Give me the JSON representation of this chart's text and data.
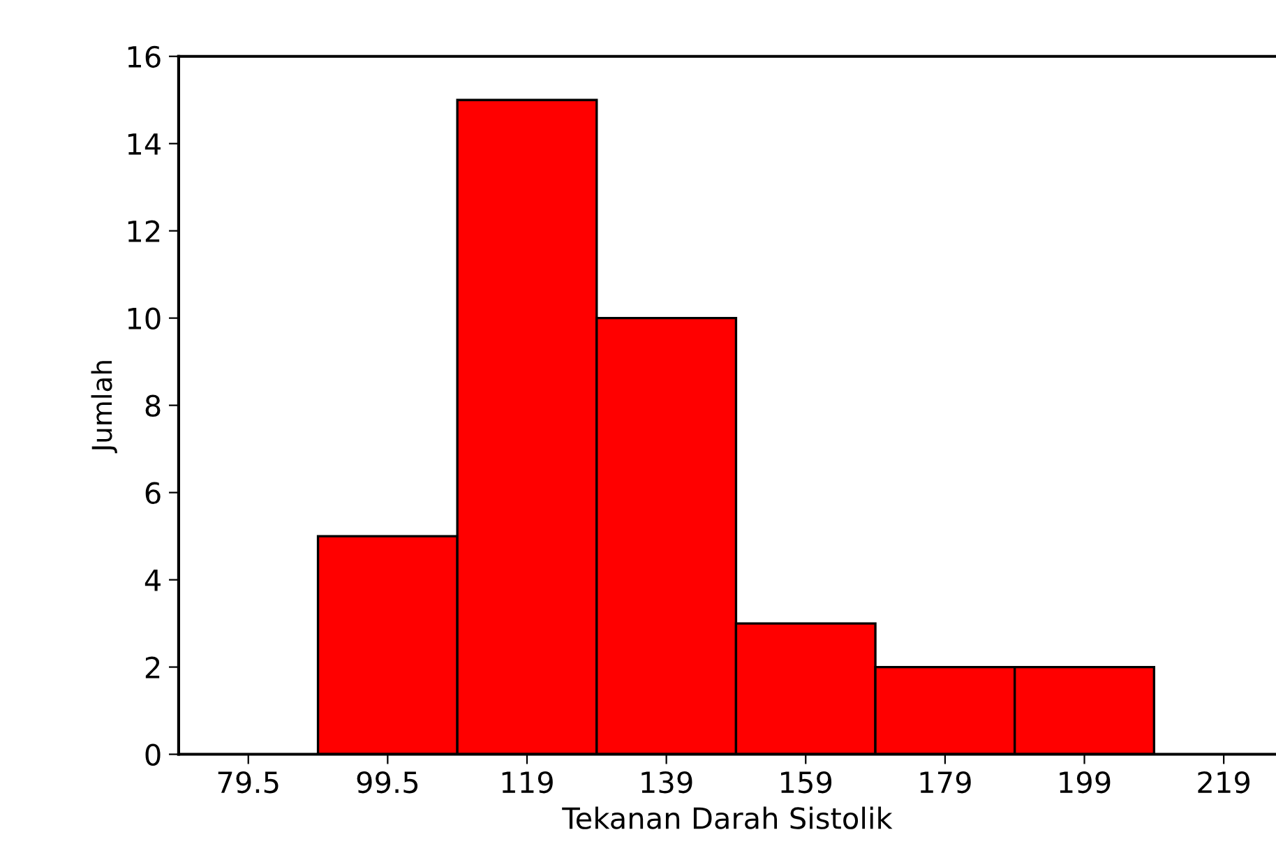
{
  "chart_data": {
    "type": "histogram",
    "xlabel": "Tekanan Darah Sistolik",
    "ylabel": "Jumlah",
    "bins": [
      89.5,
      109.5,
      129.5,
      149.5,
      169.5,
      189.5,
      209.5
    ],
    "values": [
      5,
      15,
      10,
      3,
      2,
      2
    ],
    "color": "#ff0000",
    "xlim": [
      69.5,
      227
    ],
    "xticks": [
      79.5,
      99.5,
      {
        "value": 119.5,
        "label": "119"
      },
      {
        "value": 139.5,
        "label": "139"
      },
      {
        "value": 159.5,
        "label": "159"
      },
      {
        "value": 179.5,
        "label": "179"
      },
      {
        "value": 199.5,
        "label": "199"
      },
      {
        "value": 219.5,
        "label": "219"
      }
    ],
    "ylim": [
      0,
      16
    ],
    "yticks": [
      0,
      2,
      4,
      6,
      8,
      10,
      12,
      14,
      16
    ],
    "grid": false,
    "legend": false
  }
}
